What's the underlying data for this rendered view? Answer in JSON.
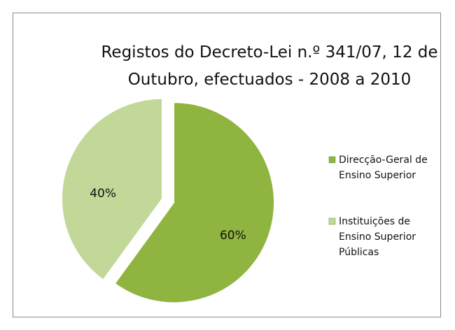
{
  "chart_data": {
    "type": "pie",
    "title": "Registos do Decreto-Lei n.º 341/07, 12 de Outubro, efectuados - 2008 a 2010",
    "categories": [
      "Direcção-Geral de Ensino Superior",
      "Instituições de Ensino Superior Públicas"
    ],
    "values": [
      60,
      40
    ],
    "value_labels": [
      "60%",
      "40%"
    ],
    "colors": [
      "#8fb440",
      "#c2d898"
    ],
    "legend": "right"
  }
}
